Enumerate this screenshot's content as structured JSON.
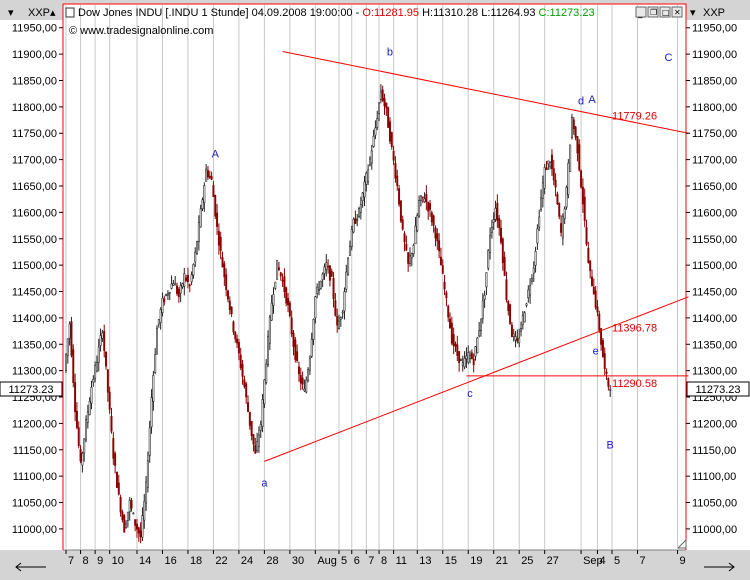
{
  "header": {
    "instrument": "Dow Jones INDU [.INDU  1 Stunde] 04.09.2008 19:00:00 - ",
    "open": "O:11281.95",
    "high": "H:11310.28",
    "low": "L:11264.93",
    "close": "C:11273.23",
    "watermark": "© www.tradesignalonline.com"
  },
  "corner_labels": {
    "left": "XXP",
    "right": "XXP"
  },
  "price_tag": {
    "left": "11273.23",
    "right": "11273.23"
  },
  "colors": {
    "background": "#ffffff",
    "candle_up": "#222222",
    "candle_down": "#8b0000",
    "trendline": "#ff0000",
    "wave_label": "#1a1acc",
    "level_label": "#e00000",
    "frame": "#d4d4d4",
    "gridline": "#c8c8c8"
  },
  "chart_data": {
    "type": "candlestick",
    "title": "",
    "xlabel": "",
    "ylabel": "",
    "ylim": [
      10960,
      11995
    ],
    "y_ticks": [
      11000,
      11050,
      11100,
      11150,
      11200,
      11250,
      11300,
      11350,
      11400,
      11450,
      11500,
      11550,
      11600,
      11650,
      11700,
      11750,
      11800,
      11850,
      11900,
      11950
    ],
    "y_tick_labels": [
      "11000,00",
      "11050,00",
      "11100,00",
      "11150,00",
      "11200,00",
      "11250,00",
      "11300,00",
      "11350,00",
      "11400,00",
      "11450,00",
      "11500,00",
      "11550,00",
      "11600,00",
      "11650,00",
      "11700,00",
      "11750,00",
      "11800,00",
      "11850,00",
      "11900,00",
      "11950,00"
    ],
    "grid": "vertical",
    "x_ticks": [
      {
        "label": "7",
        "bar": 0
      },
      {
        "label": "8",
        "bar": 8
      },
      {
        "label": "9",
        "bar": 16
      },
      {
        "label": "10",
        "bar": 24
      },
      {
        "label": "14",
        "bar": 39
      },
      {
        "label": "16",
        "bar": 53
      },
      {
        "label": "18",
        "bar": 67
      },
      {
        "label": "22",
        "bar": 81
      },
      {
        "label": "24",
        "bar": 95
      },
      {
        "label": "28",
        "bar": 109
      },
      {
        "label": "30",
        "bar": 123
      },
      {
        "label": "Aug",
        "bar": 137
      },
      {
        "label": "5",
        "bar": 150
      },
      {
        "label": "6",
        "bar": 157
      },
      {
        "label": "7",
        "bar": 165
      },
      {
        "label": "8",
        "bar": 172
      },
      {
        "label": "11",
        "bar": 180
      },
      {
        "label": "13",
        "bar": 193
      },
      {
        "label": "15",
        "bar": 207
      },
      {
        "label": "19",
        "bar": 221
      },
      {
        "label": "21",
        "bar": 235
      },
      {
        "label": "25",
        "bar": 249
      },
      {
        "label": "27",
        "bar": 263
      },
      {
        "label": "Sep",
        "bar": 283
      },
      {
        "label": "4",
        "bar": 292
      },
      {
        "label": "5",
        "bar": 300
      },
      {
        "label": "7",
        "bar": 314
      },
      {
        "label": "9",
        "bar": 336
      }
    ],
    "bar_count": 340,
    "anchors": [
      [
        0,
        11300
      ],
      [
        3,
        11390
      ],
      [
        6,
        11230
      ],
      [
        9,
        11120
      ],
      [
        12,
        11200
      ],
      [
        15,
        11270
      ],
      [
        18,
        11320
      ],
      [
        21,
        11380
      ],
      [
        24,
        11260
      ],
      [
        27,
        11140
      ],
      [
        30,
        11060
      ],
      [
        33,
        11000
      ],
      [
        36,
        11050
      ],
      [
        39,
        11010
      ],
      [
        42,
        10985
      ],
      [
        45,
        11080
      ],
      [
        48,
        11250
      ],
      [
        51,
        11380
      ],
      [
        54,
        11430
      ],
      [
        57,
        11450
      ],
      [
        60,
        11470
      ],
      [
        63,
        11440
      ],
      [
        66,
        11480
      ],
      [
        69,
        11460
      ],
      [
        72,
        11520
      ],
      [
        75,
        11600
      ],
      [
        78,
        11680
      ],
      [
        81,
        11660
      ],
      [
        84,
        11570
      ],
      [
        87,
        11500
      ],
      [
        90,
        11440
      ],
      [
        93,
        11380
      ],
      [
        96,
        11330
      ],
      [
        99,
        11270
      ],
      [
        102,
        11200
      ],
      [
        105,
        11140
      ],
      [
        108,
        11200
      ],
      [
        111,
        11320
      ],
      [
        114,
        11430
      ],
      [
        117,
        11500
      ],
      [
        120,
        11470
      ],
      [
        123,
        11420
      ],
      [
        126,
        11350
      ],
      [
        129,
        11290
      ],
      [
        132,
        11260
      ],
      [
        135,
        11330
      ],
      [
        138,
        11440
      ],
      [
        141,
        11470
      ],
      [
        144,
        11500
      ],
      [
        147,
        11470
      ],
      [
        150,
        11380
      ],
      [
        153,
        11420
      ],
      [
        156,
        11520
      ],
      [
        159,
        11580
      ],
      [
        162,
        11600
      ],
      [
        165,
        11650
      ],
      [
        168,
        11700
      ],
      [
        171,
        11760
      ],
      [
        174,
        11830
      ],
      [
        177,
        11790
      ],
      [
        180,
        11720
      ],
      [
        183,
        11650
      ],
      [
        186,
        11560
      ],
      [
        189,
        11500
      ],
      [
        192,
        11540
      ],
      [
        195,
        11620
      ],
      [
        198,
        11630
      ],
      [
        201,
        11600
      ],
      [
        204,
        11560
      ],
      [
        207,
        11500
      ],
      [
        210,
        11430
      ],
      [
        213,
        11360
      ],
      [
        216,
        11330
      ],
      [
        219,
        11310
      ],
      [
        222,
        11330
      ],
      [
        225,
        11320
      ],
      [
        228,
        11380
      ],
      [
        231,
        11450
      ],
      [
        234,
        11560
      ],
      [
        237,
        11610
      ],
      [
        240,
        11550
      ],
      [
        243,
        11440
      ],
      [
        246,
        11370
      ],
      [
        249,
        11350
      ],
      [
        252,
        11400
      ],
      [
        255,
        11450
      ],
      [
        258,
        11500
      ],
      [
        261,
        11600
      ],
      [
        264,
        11680
      ],
      [
        267,
        11700
      ],
      [
        270,
        11640
      ],
      [
        273,
        11560
      ],
      [
        276,
        11640
      ],
      [
        279,
        11780
      ],
      [
        282,
        11720
      ],
      [
        285,
        11620
      ],
      [
        288,
        11500
      ],
      [
        291,
        11450
      ],
      [
        294,
        11380
      ],
      [
        297,
        11300
      ],
      [
        299,
        11273
      ]
    ],
    "trendlines": [
      {
        "from": [
          119,
          11905
        ],
        "to": [
          342,
          11750
        ]
      },
      {
        "from": [
          109,
          11128
        ],
        "to": [
          342,
          11440
        ]
      },
      {
        "from": [
          220,
          11290
        ],
        "to": [
          342,
          11290
        ]
      }
    ],
    "annotations": [
      {
        "text": "A",
        "bar": 82,
        "price": 11712,
        "kind": "wave"
      },
      {
        "text": "a",
        "bar": 109,
        "price": 11088,
        "kind": "wave"
      },
      {
        "text": "b",
        "bar": 178,
        "price": 11905,
        "kind": "wave"
      },
      {
        "text": "c",
        "bar": 222,
        "price": 11258,
        "kind": "wave"
      },
      {
        "text": "d",
        "bar": 283,
        "price": 11812,
        "kind": "wave"
      },
      {
        "text": "A",
        "bar": 289,
        "price": 11815,
        "kind": "wave"
      },
      {
        "text": "C",
        "bar": 331,
        "price": 11895,
        "kind": "wave"
      },
      {
        "text": "e",
        "bar": 291,
        "price": 11338,
        "kind": "wave"
      },
      {
        "text": "B",
        "bar": 299,
        "price": 11160,
        "kind": "wave"
      },
      {
        "text": "11779.26",
        "bar": 300,
        "price": 11784,
        "kind": "level"
      },
      {
        "text": "11396.78",
        "bar": 300,
        "price": 11382,
        "kind": "level"
      },
      {
        "text": "11290.58",
        "bar": 300,
        "price": 11277,
        "kind": "level"
      }
    ]
  }
}
